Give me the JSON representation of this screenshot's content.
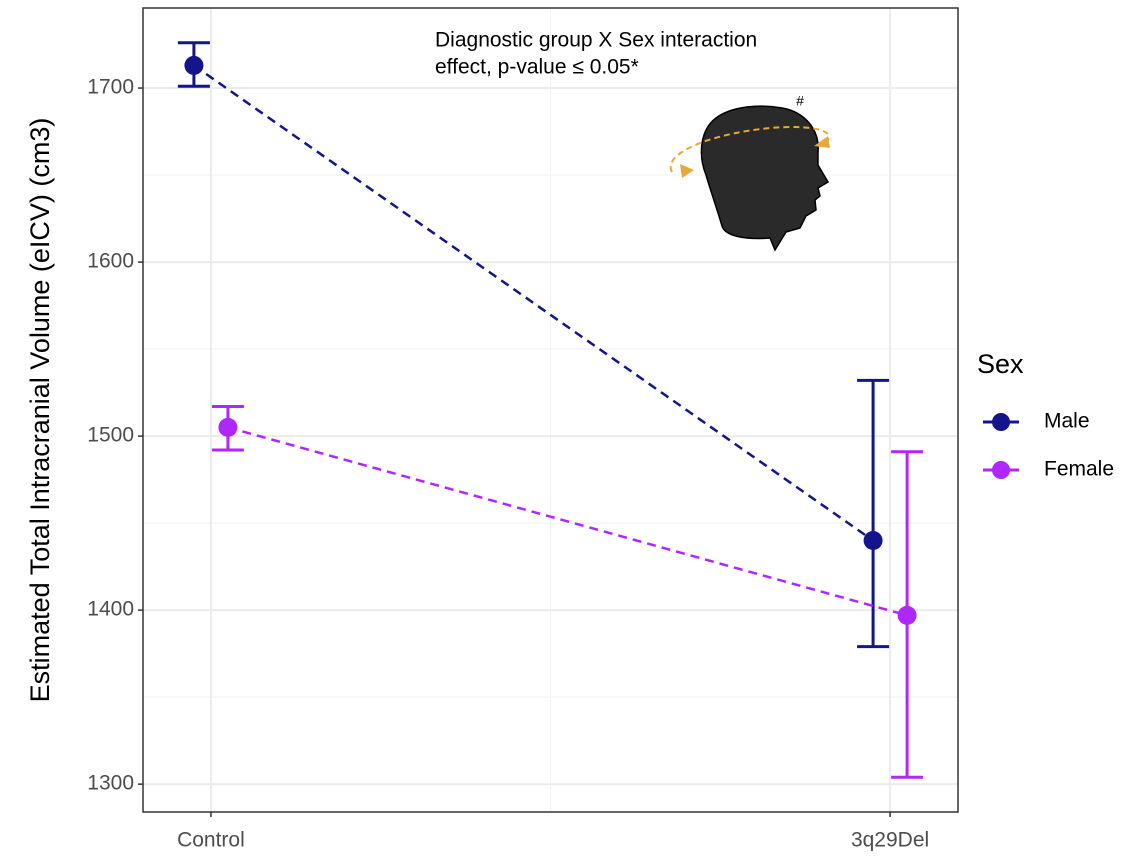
{
  "chart_data": {
    "type": "errorbar-line",
    "y_label": "Estimated Total Intracranial Volume (eICV) (cm3)",
    "categories": [
      "Control",
      "3q29Del"
    ],
    "series": [
      {
        "name": "Male",
        "color": "#14148c",
        "values": [
          1713,
          1440
        ],
        "lower": [
          1701,
          1379
        ],
        "upper": [
          1726,
          1532
        ]
      },
      {
        "name": "Female",
        "color": "#b026ff",
        "values": [
          1505,
          1397
        ],
        "lower": [
          1492,
          1304
        ],
        "upper": [
          1517,
          1491
        ]
      }
    ],
    "ylim": [
      1284,
      1746
    ],
    "yticks": [
      1300,
      1400,
      1500,
      1600,
      1700
    ],
    "grid": true,
    "legend_title": "Sex",
    "legend_position": "right",
    "annotation": [
      "Diagnostic group X Sex interaction",
      "effect, p-value ≤ 0.05*"
    ],
    "icon_label": "#"
  }
}
